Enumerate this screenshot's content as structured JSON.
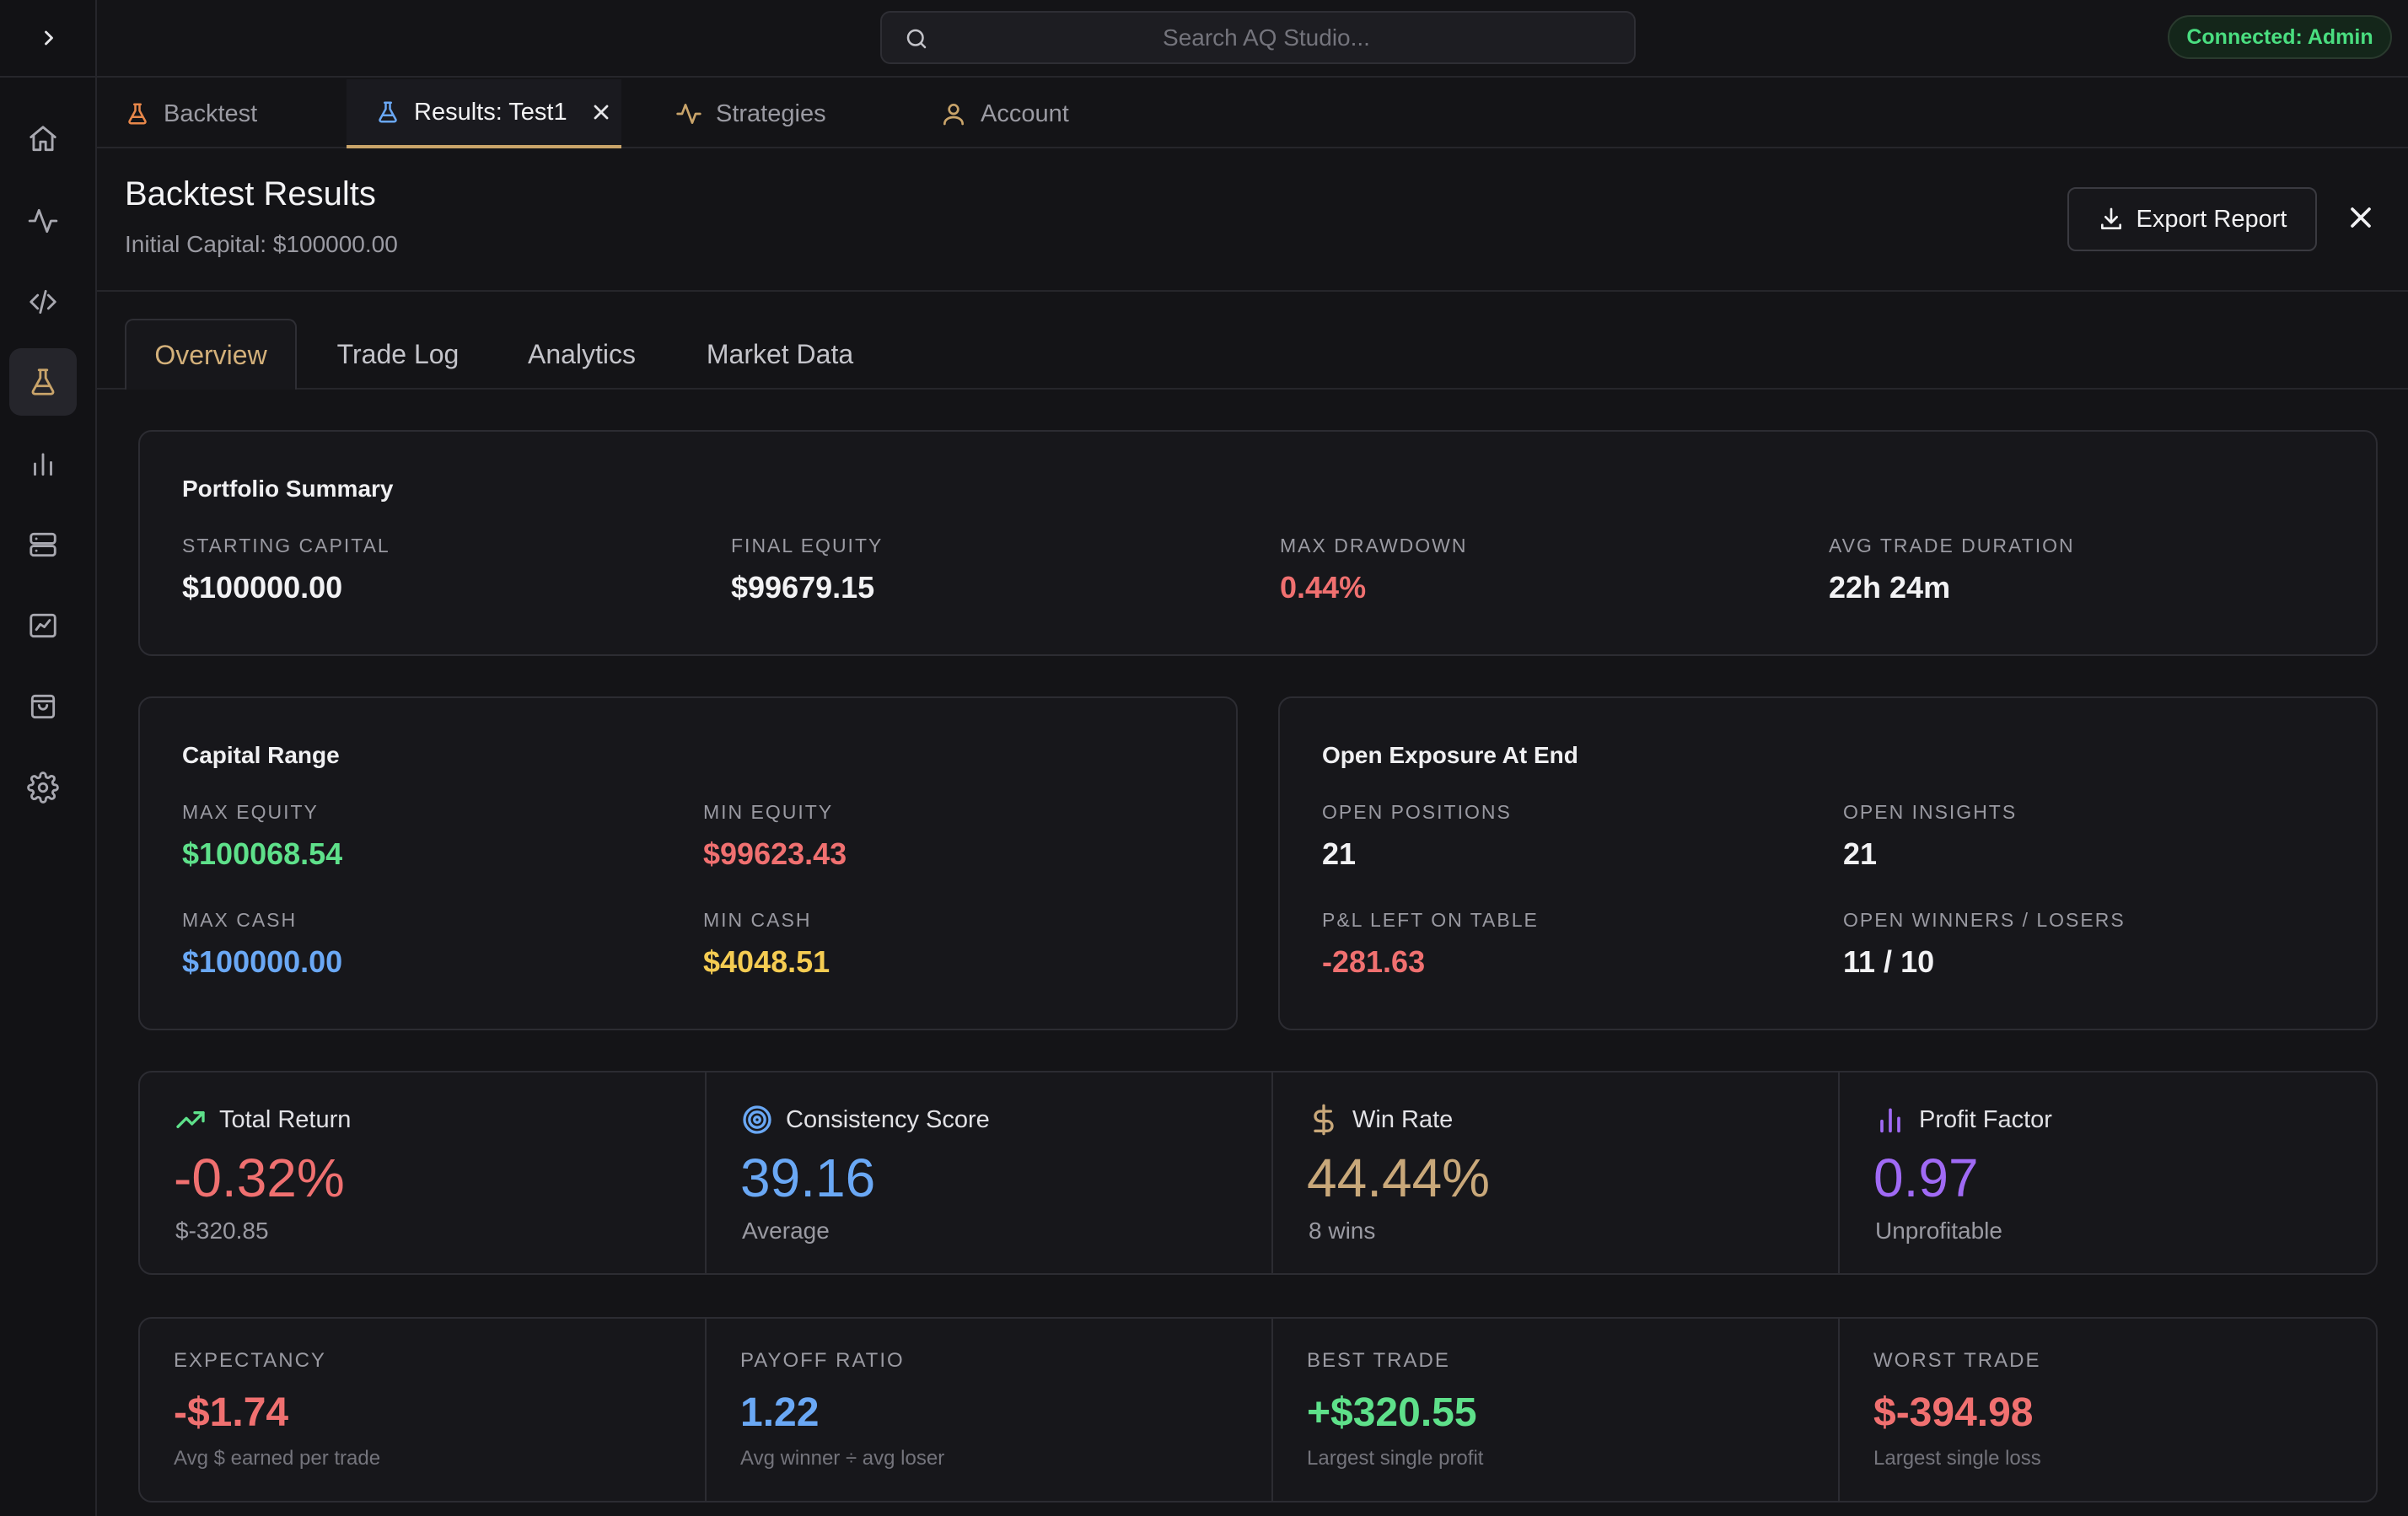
{
  "search": {
    "placeholder": "Search AQ Studio..."
  },
  "connection": {
    "status": "Connected: Admin",
    "color": "#4ade80"
  },
  "sidebar": {
    "items": [
      {
        "name": "home",
        "icon": "home-icon"
      },
      {
        "name": "activity",
        "icon": "activity-icon"
      },
      {
        "name": "code",
        "icon": "code-icon"
      },
      {
        "name": "backtest",
        "icon": "flask-icon",
        "active": true
      },
      {
        "name": "charts",
        "icon": "bar-chart-icon"
      },
      {
        "name": "servers",
        "icon": "server-icon"
      },
      {
        "name": "trading",
        "icon": "line-chart-icon"
      },
      {
        "name": "marketplace",
        "icon": "shopping-bag-icon"
      },
      {
        "name": "settings",
        "icon": "gear-icon"
      }
    ]
  },
  "tabs": [
    {
      "label": "Backtest",
      "icon": "flask-icon"
    },
    {
      "label": "Results: Test1",
      "icon": "flask-icon",
      "active": true,
      "closable": true
    },
    {
      "label": "Strategies",
      "icon": "activity-icon"
    },
    {
      "label": "Account",
      "icon": "user-icon"
    }
  ],
  "header": {
    "title": "Backtest Results",
    "subtitle": "Initial Capital: $100000.00",
    "export_label": "Export Report"
  },
  "subtabs": [
    "Overview",
    "Trade Log",
    "Analytics",
    "Market Data"
  ],
  "portfolio": {
    "title": "Portfolio Summary",
    "items": [
      {
        "label": "STARTING CAPITAL",
        "value": "$100000.00"
      },
      {
        "label": "FINAL EQUITY",
        "value": "$99679.15"
      },
      {
        "label": "MAX DRAWDOWN",
        "value": "0.44%"
      },
      {
        "label": "AVG TRADE DURATION",
        "value": "22h 24m"
      }
    ]
  },
  "capital": {
    "title": "Capital Range",
    "items": [
      {
        "label": "MAX EQUITY",
        "value": "$100068.54"
      },
      {
        "label": "MIN EQUITY",
        "value": "$99623.43"
      },
      {
        "label": "MAX CASH",
        "value": "$100000.00"
      },
      {
        "label": "MIN CASH",
        "value": "$4048.51"
      }
    ]
  },
  "exposure": {
    "title": "Open Exposure At End",
    "items": [
      {
        "label": "OPEN POSITIONS",
        "value": "21"
      },
      {
        "label": "OPEN INSIGHTS",
        "value": "21"
      },
      {
        "label": "P&L LEFT ON TABLE",
        "value": "-281.63"
      },
      {
        "label": "OPEN WINNERS / LOSERS",
        "value": "11 / 10"
      }
    ]
  },
  "metrics": [
    {
      "title": "Total Return",
      "value": "-0.32%",
      "sub": "$-320.85",
      "icon": "trending-up-icon",
      "color": "#f07070"
    },
    {
      "title": "Consistency Score",
      "value": "39.16",
      "sub": "Average",
      "icon": "target-icon",
      "color": "#6aa8f5"
    },
    {
      "title": "Win Rate",
      "value": "44.44%",
      "sub": "8 wins",
      "icon": "dollar-icon",
      "color": "#c9a87a"
    },
    {
      "title": "Profit Factor",
      "value": "0.97",
      "sub": "Unprofitable",
      "icon": "bar-chart-icon",
      "color": "#a06af5"
    }
  ],
  "extras": [
    {
      "label": "EXPECTANCY",
      "value": "-$1.74",
      "sub": "Avg $ earned per trade"
    },
    {
      "label": "PAYOFF RATIO",
      "value": "1.22",
      "sub": "Avg winner ÷ avg loser"
    },
    {
      "label": "BEST TRADE",
      "value": "+$320.55",
      "sub": "Largest single profit"
    },
    {
      "label": "WORST TRADE",
      "value": "$-394.98",
      "sub": "Largest single loss"
    }
  ]
}
